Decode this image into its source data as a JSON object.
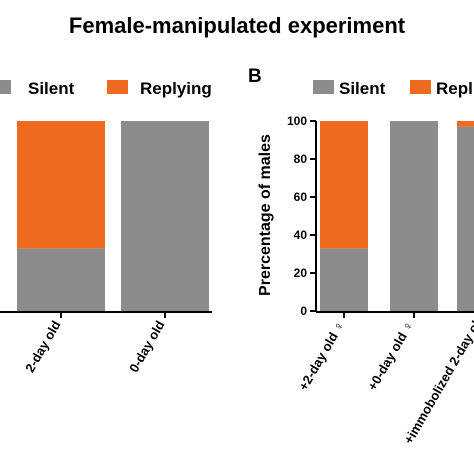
{
  "title": "Female-manipulated experiment",
  "colors": {
    "silent": "#8c8c8c",
    "replying": "#ee6a1f"
  },
  "chart_data": [
    {
      "type": "bar",
      "stacked": true,
      "panel": "",
      "legend": [
        "Silent",
        "Replying"
      ],
      "legend_position": "top",
      "categories": [
        "2-day old",
        "0-day old"
      ],
      "series": [
        {
          "name": "Silent",
          "values": [
            33,
            100
          ]
        },
        {
          "name": "Replying",
          "values": [
            67,
            0
          ]
        }
      ],
      "ylim": [
        0,
        100
      ],
      "ylabel": "",
      "yticks": []
    },
    {
      "type": "bar",
      "stacked": true,
      "panel": "B",
      "legend": [
        "Silent",
        "Repl"
      ],
      "legend_position": "top",
      "categories": [
        "+2-day old ♀",
        "+0-day old ♀",
        "+immobolized 2-day ol"
      ],
      "series": [
        {
          "name": "Silent",
          "values": [
            33,
            100,
            97
          ]
        },
        {
          "name": "Replying",
          "values": [
            67,
            0,
            3
          ]
        }
      ],
      "ylim": [
        0,
        100
      ],
      "ylabel": "Prercentage of males",
      "yticks": [
        "0",
        "20",
        "40",
        "60",
        "80",
        "100"
      ]
    }
  ]
}
